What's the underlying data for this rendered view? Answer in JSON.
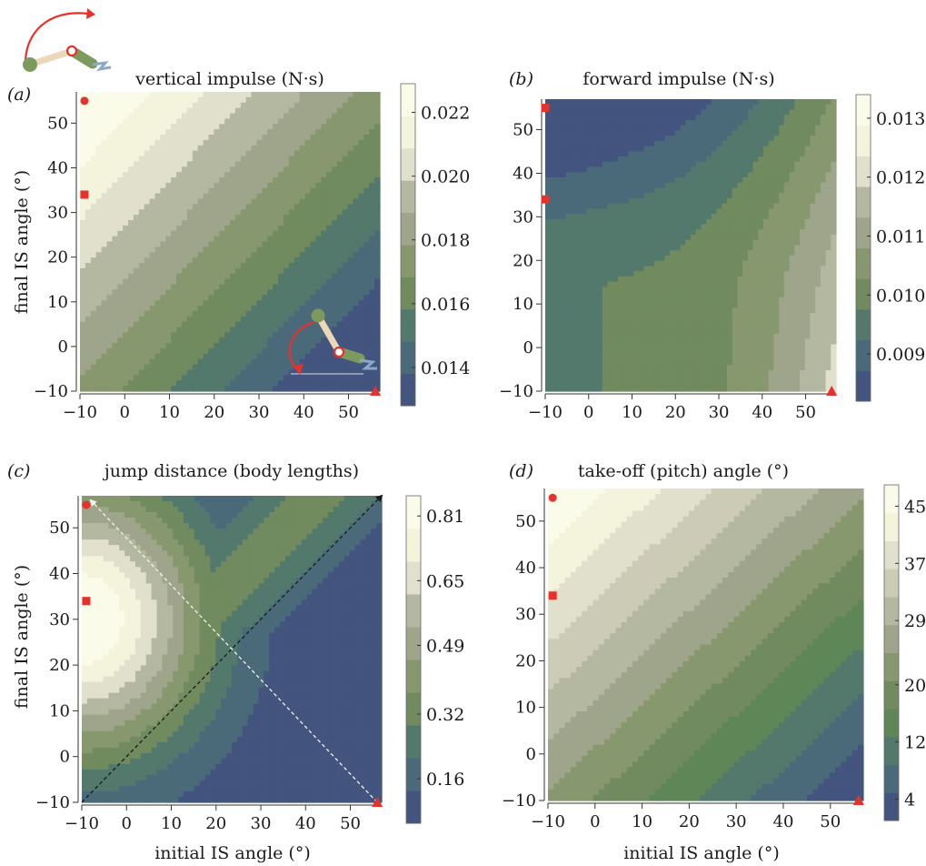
{
  "colors": {
    "band_palette": [
      "#43557e",
      "#4b6a79",
      "#53796d",
      "#5f8656",
      "#718b5f",
      "#87986f",
      "#9ea58a",
      "#b5b8a1",
      "#cccbb6",
      "#e1e0cc",
      "#f4f3dc",
      "#fbfbe9"
    ],
    "marker_red": "#e8312b",
    "arrow_black": "#1a1a1a",
    "arrow_white": "#f2f2f2",
    "leg_beige": "#ecd8b8",
    "leg_green": "#7d9a5e"
  },
  "chart_data": [
    {
      "type": "heatmap",
      "panel_label": "(a)",
      "title": "vertical impulse (N·s)",
      "xlabel": "",
      "ylabel": "final IS angle (°)",
      "xlim": [
        -10,
        57
      ],
      "ylim": [
        -10,
        57
      ],
      "x_ticks": [
        "−10",
        "0",
        "10",
        "20",
        "30",
        "40",
        "50"
      ],
      "y_ticks": [
        "−10",
        "0",
        "10",
        "20",
        "30",
        "40",
        "50"
      ],
      "colorbar": {
        "range": [
          0.0128,
          0.0229
        ],
        "ticks": [
          "0.014",
          "0.016",
          "0.018",
          "0.020",
          "0.022"
        ],
        "tick_values": [
          0.014,
          0.016,
          0.018,
          0.02,
          0.022
        ],
        "levels": 10
      },
      "field": {
        "kind": "linear",
        "intercept": 0.0175,
        "coef_x": -8.9e-05,
        "coef_y": 8.5e-05,
        "ref_x": 23,
        "ref_y": 23
      },
      "markers": [
        {
          "shape": "circle",
          "x": -9,
          "y": 55
        },
        {
          "shape": "square",
          "x": -9,
          "y": 34
        },
        {
          "shape": "triangle",
          "x": 56,
          "y": -10
        }
      ],
      "arrows": [],
      "icons": [
        "leg-swing-up-icon",
        "leg-swing-down-icon"
      ]
    },
    {
      "type": "heatmap",
      "panel_label": "(b)",
      "title": "forward impulse (N·s)",
      "xlabel": "",
      "ylabel": "",
      "xlim": [
        -10,
        57
      ],
      "ylim": [
        -10,
        57
      ],
      "x_ticks": [
        "−10",
        "0",
        "10",
        "20",
        "30",
        "40",
        "50"
      ],
      "y_ticks": [
        "−10",
        "0",
        "10",
        "20",
        "30",
        "40",
        "50"
      ],
      "colorbar": {
        "range": [
          0.0082,
          0.0134
        ],
        "ticks": [
          "0.009",
          "0.010",
          "0.011",
          "0.012",
          "0.013"
        ],
        "tick_values": [
          0.009,
          0.01,
          0.011,
          0.012,
          0.013
        ],
        "levels": 10
      },
      "field": {
        "kind": "saddle",
        "base": 0.0097,
        "a": 0.0021,
        "b": 0.0024,
        "c": 0.0003
      },
      "markers": [
        {
          "shape": "square",
          "x": -10,
          "y": 55
        },
        {
          "shape": "square",
          "x": -10,
          "y": 34
        },
        {
          "shape": "triangle",
          "x": 56,
          "y": -10
        }
      ],
      "arrows": [],
      "icons": []
    },
    {
      "type": "heatmap",
      "panel_label": "(c)",
      "title": "jump distance (body lengths)",
      "xlabel": "initial IS angle (°)",
      "ylabel": "final IS angle (°)",
      "xlim": [
        -10,
        57
      ],
      "ylim": [
        -10,
        57
      ],
      "x_ticks": [
        "−10",
        "0",
        "10",
        "20",
        "30",
        "40",
        "50"
      ],
      "y_ticks": [
        "−10",
        "0",
        "10",
        "20",
        "30",
        "40",
        "50"
      ],
      "colorbar": {
        "range": [
          0.05,
          0.86
        ],
        "ticks": [
          "0.16",
          "0.32",
          "0.49",
          "0.65",
          "0.81"
        ],
        "tick_values": [
          0.16,
          0.32,
          0.49,
          0.65,
          0.81
        ],
        "levels": 10
      },
      "field": {
        "kind": "gauss",
        "peak": 0.86,
        "cx": -10,
        "cy": 30,
        "sx": 28,
        "sy": 30,
        "ridge": 0.32,
        "ridge_w": 15,
        "floor": 0.05
      },
      "markers": [
        {
          "shape": "circle",
          "x": -9,
          "y": 55
        },
        {
          "shape": "square",
          "x": -9,
          "y": 34
        },
        {
          "shape": "triangle",
          "x": 56,
          "y": -10
        }
      ],
      "arrows": [
        {
          "from": [
            -10,
            -10
          ],
          "to": [
            57,
            57
          ],
          "style": "black"
        },
        {
          "from": [
            56,
            -10
          ],
          "to": [
            -8,
            56
          ],
          "style": "white"
        }
      ],
      "icons": []
    },
    {
      "type": "heatmap",
      "panel_label": "(d)",
      "title": "take-off (pitch) angle (°)",
      "xlabel": "initial IS angle (°)",
      "ylabel": "",
      "xlim": [
        -10,
        57
      ],
      "ylim": [
        -10,
        57
      ],
      "x_ticks": [
        "−10",
        "0",
        "10",
        "20",
        "30",
        "40",
        "50"
      ],
      "y_ticks": [
        "−10",
        "0",
        "10",
        "20",
        "30",
        "40",
        "50"
      ],
      "colorbar": {
        "range": [
          1,
          48
        ],
        "ticks": [
          "4",
          "12",
          "20",
          "29",
          "37",
          "45"
        ],
        "tick_values": [
          4,
          12,
          20,
          29,
          37,
          45
        ],
        "levels": 12
      },
      "field": {
        "kind": "linear",
        "intercept": 24.5,
        "coef_x": -0.35,
        "coef_y": 0.37,
        "ref_x": 23,
        "ref_y": 23
      },
      "markers": [
        {
          "shape": "circle",
          "x": -9,
          "y": 55
        },
        {
          "shape": "square",
          "x": -9,
          "y": 34
        },
        {
          "shape": "triangle",
          "x": 56,
          "y": -10
        }
      ],
      "arrows": [],
      "icons": []
    }
  ]
}
